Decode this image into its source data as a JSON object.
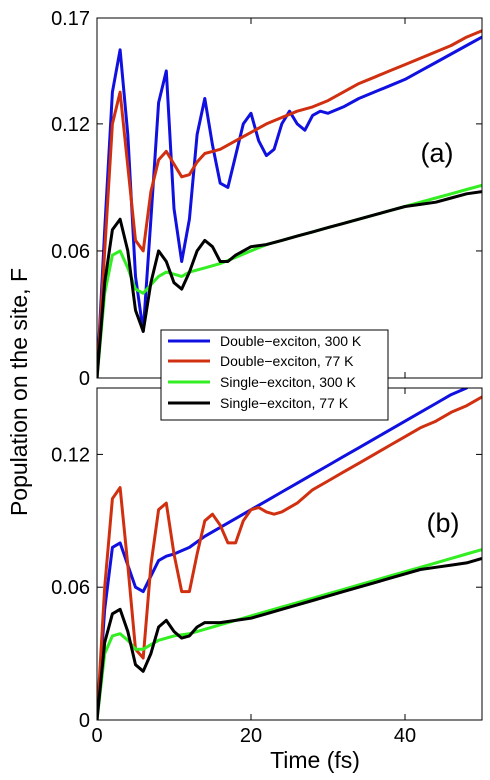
{
  "chart_data": [
    {
      "type": "line",
      "panel_label": "(a)",
      "xlim": [
        0,
        50
      ],
      "ylim": [
        0,
        0.17
      ],
      "yticks": [
        "0",
        "0.06",
        "0.12",
        "0.17"
      ],
      "yticks_values": [
        0,
        0.06,
        0.12,
        0.17
      ],
      "xticks": [],
      "grid": false,
      "series": [
        {
          "name": "Double−exciton, 300 K",
          "color": "#1010e0",
          "x": [
            0,
            1,
            2,
            3,
            4,
            5,
            6,
            7,
            8,
            9,
            10,
            11,
            12,
            13,
            14,
            15,
            16,
            17,
            18,
            19,
            20,
            21,
            22,
            23,
            24,
            25,
            26,
            27,
            28,
            29,
            30,
            32,
            34,
            36,
            38,
            40,
            42,
            44,
            46,
            48,
            50
          ],
          "y": [
            0,
            0.07,
            0.135,
            0.155,
            0.115,
            0.048,
            0.022,
            0.075,
            0.13,
            0.145,
            0.08,
            0.055,
            0.075,
            0.115,
            0.132,
            0.11,
            0.092,
            0.09,
            0.105,
            0.12,
            0.125,
            0.112,
            0.105,
            0.108,
            0.12,
            0.126,
            0.12,
            0.117,
            0.124,
            0.126,
            0.125,
            0.128,
            0.132,
            0.135,
            0.138,
            0.141,
            0.145,
            0.149,
            0.153,
            0.157,
            0.161
          ]
        },
        {
          "name": "Double−exciton, 77 K",
          "color": "#d03010",
          "x": [
            0,
            1,
            2,
            3,
            4,
            5,
            6,
            7,
            8,
            9,
            10,
            11,
            12,
            13,
            14,
            15,
            16,
            17,
            18,
            19,
            20,
            22,
            24,
            26,
            28,
            30,
            32,
            34,
            36,
            38,
            40,
            42,
            44,
            46,
            48,
            50
          ],
          "y": [
            0,
            0.06,
            0.12,
            0.135,
            0.1,
            0.065,
            0.06,
            0.088,
            0.103,
            0.107,
            0.101,
            0.095,
            0.096,
            0.102,
            0.106,
            0.107,
            0.108,
            0.11,
            0.112,
            0.114,
            0.116,
            0.12,
            0.123,
            0.126,
            0.128,
            0.131,
            0.135,
            0.139,
            0.142,
            0.145,
            0.148,
            0.151,
            0.154,
            0.157,
            0.161,
            0.164
          ]
        },
        {
          "name": "Single−exciton, 300 K",
          "color": "#33ee22",
          "x": [
            0,
            1,
            2,
            3,
            4,
            5,
            6,
            7,
            8,
            9,
            10,
            11,
            12,
            14,
            16,
            18,
            20,
            22,
            24,
            26,
            28,
            30,
            32,
            34,
            36,
            38,
            40,
            42,
            44,
            46,
            48,
            50
          ],
          "y": [
            0,
            0.04,
            0.058,
            0.06,
            0.052,
            0.042,
            0.04,
            0.044,
            0.048,
            0.05,
            0.049,
            0.048,
            0.05,
            0.052,
            0.054,
            0.057,
            0.06,
            0.063,
            0.065,
            0.067,
            0.069,
            0.071,
            0.073,
            0.075,
            0.077,
            0.079,
            0.081,
            0.083,
            0.085,
            0.087,
            0.089,
            0.091
          ]
        },
        {
          "name": "Single−exciton, 77 K",
          "color": "#000000",
          "x": [
            0,
            1,
            2,
            3,
            4,
            5,
            6,
            7,
            8,
            9,
            10,
            11,
            12,
            13,
            14,
            15,
            16,
            17,
            18,
            20,
            22,
            24,
            26,
            28,
            30,
            32,
            34,
            36,
            38,
            40,
            42,
            44,
            46,
            48,
            50
          ],
          "y": [
            0,
            0.045,
            0.07,
            0.075,
            0.06,
            0.032,
            0.022,
            0.045,
            0.06,
            0.055,
            0.045,
            0.042,
            0.05,
            0.06,
            0.065,
            0.062,
            0.055,
            0.055,
            0.058,
            0.062,
            0.063,
            0.065,
            0.067,
            0.069,
            0.071,
            0.073,
            0.075,
            0.077,
            0.079,
            0.081,
            0.082,
            0.083,
            0.085,
            0.087,
            0.088
          ]
        }
      ]
    },
    {
      "type": "line",
      "panel_label": "(b)",
      "xlabel": "Time (fs)",
      "xlim": [
        0,
        50
      ],
      "ylim": [
        0,
        0.15
      ],
      "yticks": [
        "0",
        "0.06",
        "0.12"
      ],
      "yticks_values": [
        0,
        0.06,
        0.12
      ],
      "xticks": [
        "0",
        "20",
        "40"
      ],
      "xticks_values": [
        0,
        20,
        40
      ],
      "grid": false,
      "series": [
        {
          "name": "Double−exciton, 300 K",
          "color": "#1010e0",
          "x": [
            0,
            1,
            2,
            3,
            4,
            5,
            6,
            7,
            8,
            9,
            10,
            12,
            14,
            16,
            18,
            20,
            22,
            24,
            26,
            28,
            30,
            32,
            34,
            36,
            38,
            40,
            42,
            44,
            46,
            48
          ],
          "y": [
            0,
            0.05,
            0.078,
            0.08,
            0.07,
            0.06,
            0.058,
            0.065,
            0.072,
            0.074,
            0.075,
            0.078,
            0.083,
            0.087,
            0.091,
            0.095,
            0.099,
            0.103,
            0.107,
            0.111,
            0.115,
            0.119,
            0.123,
            0.127,
            0.131,
            0.135,
            0.139,
            0.143,
            0.147,
            0.15
          ]
        },
        {
          "name": "Double−exciton, 77 K",
          "color": "#d03010",
          "x": [
            0,
            1,
            2,
            3,
            4,
            5,
            6,
            7,
            8,
            9,
            10,
            11,
            12,
            13,
            14,
            15,
            16,
            17,
            18,
            19,
            20,
            21,
            22,
            23,
            24,
            26,
            28,
            30,
            32,
            34,
            36,
            38,
            40,
            42,
            44,
            46,
            48,
            50
          ],
          "y": [
            0,
            0.06,
            0.1,
            0.105,
            0.07,
            0.032,
            0.028,
            0.07,
            0.095,
            0.098,
            0.075,
            0.058,
            0.058,
            0.075,
            0.09,
            0.093,
            0.088,
            0.08,
            0.08,
            0.09,
            0.095,
            0.096,
            0.094,
            0.093,
            0.094,
            0.098,
            0.104,
            0.108,
            0.112,
            0.116,
            0.12,
            0.124,
            0.128,
            0.132,
            0.135,
            0.139,
            0.142,
            0.146
          ]
        },
        {
          "name": "Single−exciton, 300 K",
          "color": "#33ee22",
          "x": [
            0,
            1,
            2,
            3,
            4,
            5,
            6,
            7,
            8,
            10,
            12,
            14,
            16,
            18,
            20,
            22,
            24,
            26,
            28,
            30,
            32,
            34,
            36,
            38,
            40,
            42,
            44,
            46,
            48,
            50
          ],
          "y": [
            0,
            0.03,
            0.038,
            0.039,
            0.036,
            0.032,
            0.032,
            0.034,
            0.036,
            0.038,
            0.039,
            0.041,
            0.043,
            0.045,
            0.047,
            0.049,
            0.051,
            0.053,
            0.055,
            0.057,
            0.059,
            0.061,
            0.063,
            0.065,
            0.067,
            0.069,
            0.071,
            0.073,
            0.075,
            0.077
          ]
        },
        {
          "name": "Single−exciton, 77 K",
          "color": "#000000",
          "x": [
            0,
            1,
            2,
            3,
            4,
            5,
            6,
            7,
            8,
            9,
            10,
            11,
            12,
            13,
            14,
            16,
            18,
            20,
            22,
            24,
            26,
            28,
            30,
            32,
            34,
            36,
            38,
            40,
            42,
            44,
            46,
            48,
            50
          ],
          "y": [
            0,
            0.035,
            0.048,
            0.05,
            0.04,
            0.025,
            0.022,
            0.03,
            0.042,
            0.045,
            0.04,
            0.037,
            0.038,
            0.042,
            0.044,
            0.044,
            0.045,
            0.046,
            0.048,
            0.05,
            0.052,
            0.054,
            0.056,
            0.058,
            0.06,
            0.062,
            0.064,
            0.066,
            0.068,
            0.069,
            0.07,
            0.071,
            0.073
          ]
        }
      ]
    }
  ],
  "ylabel": "Population on the site, F",
  "legend": {
    "location": "center",
    "entries": [
      {
        "label": "Double−exciton, 300 K",
        "color": "#1010e0"
      },
      {
        "label": "Double−exciton, 77 K",
        "color": "#d03010"
      },
      {
        "label": "Single−exciton, 300 K",
        "color": "#33ee22"
      },
      {
        "label": "Single−exciton, 77 K",
        "color": "#000000"
      }
    ]
  }
}
